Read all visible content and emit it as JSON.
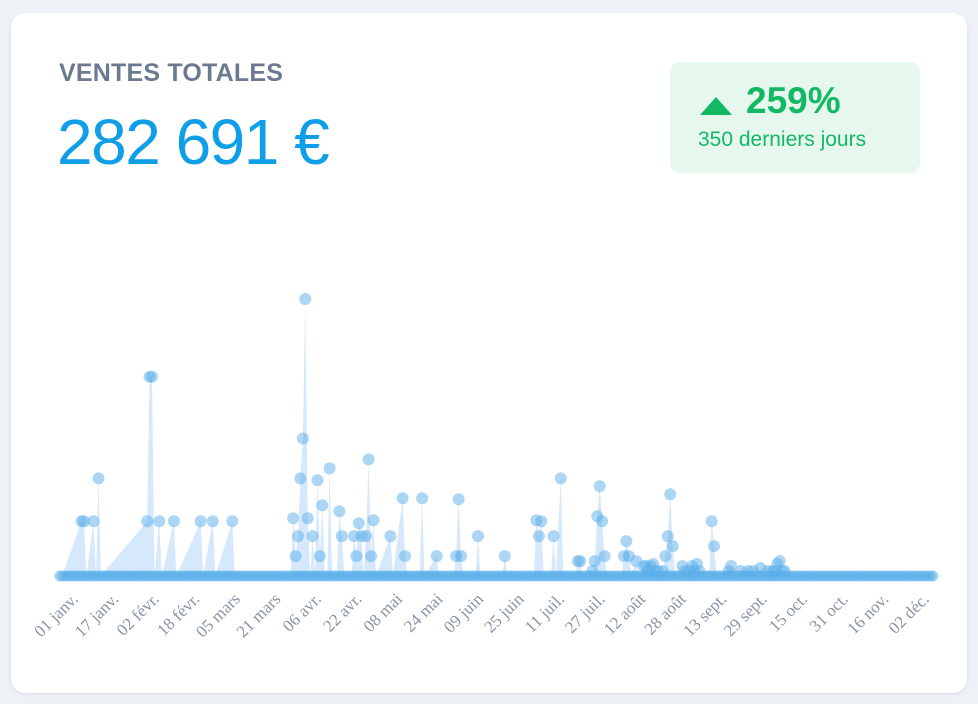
{
  "card": {
    "title": "VENTES TOTALES",
    "total": "282 691 €",
    "change": "259%",
    "period": "350 derniers jours"
  },
  "colors": {
    "title": "#6b7a90",
    "total": "#0f9ee8",
    "up": "#13b864",
    "badge_bg": "#e6f8ee",
    "area": "#cfe4fb",
    "points": "#5aaeea",
    "ticks": "#8a94a6"
  },
  "icons": {
    "trend": "triangle-up-icon"
  },
  "chart_data": {
    "type": "area",
    "title": "",
    "xlabel": "",
    "ylabel": "",
    "grid": false,
    "legend": "none",
    "x_ticks": [
      "01 janv.",
      "17 janv.",
      "02 févr.",
      "18 févr.",
      "05 mars",
      "21 mars",
      "06 avr.",
      "22 avr.",
      "08 mai",
      "24 mai",
      "09 juin",
      "25 juin",
      "11 juil.",
      "27 juil.",
      "12 août",
      "28 août",
      "13 sept.",
      "29 sept.",
      "15 oct.",
      "31 oct.",
      "16 nov.",
      "02 déc."
    ],
    "ylim": [
      0,
      280
    ],
    "series": [
      {
        "points": [
          [
            "01-01",
            0
          ],
          [
            "01-09",
            55
          ],
          [
            "01-10",
            55
          ],
          [
            "01-11",
            0
          ],
          [
            "01-14",
            55
          ],
          [
            "01-15",
            0
          ],
          [
            "01-16",
            98
          ],
          [
            "01-17",
            0
          ],
          [
            "02-05",
            55
          ],
          [
            "02-06",
            200
          ],
          [
            "02-07",
            200
          ],
          [
            "02-08",
            0
          ],
          [
            "02-10",
            55
          ],
          [
            "02-11",
            0
          ],
          [
            "02-16",
            55
          ],
          [
            "02-17",
            0
          ],
          [
            "02-27",
            55
          ],
          [
            "02-28",
            0
          ],
          [
            "03-04",
            55
          ],
          [
            "03-05",
            0
          ],
          [
            "03-12",
            55
          ],
          [
            "03-13",
            0
          ],
          [
            "04-05",
            0
          ],
          [
            "04-06",
            58
          ],
          [
            "04-07",
            20
          ],
          [
            "04-08",
            40
          ],
          [
            "04-09",
            98
          ],
          [
            "04-10",
            138
          ],
          [
            "04-11",
            278
          ],
          [
            "04-12",
            58
          ],
          [
            "04-13",
            0
          ],
          [
            "04-14",
            40
          ],
          [
            "04-15",
            0
          ],
          [
            "04-16",
            96
          ],
          [
            "04-17",
            20
          ],
          [
            "04-18",
            71
          ],
          [
            "04-19",
            0
          ],
          [
            "04-20",
            0
          ],
          [
            "04-21",
            108
          ],
          [
            "04-22",
            0
          ],
          [
            "04-24",
            0
          ],
          [
            "04-25",
            65
          ],
          [
            "04-26",
            40
          ],
          [
            "04-27",
            0
          ],
          [
            "04-30",
            0
          ],
          [
            "05-01",
            40
          ],
          [
            "05-02",
            20
          ],
          [
            "05-03",
            53
          ],
          [
            "05-04",
            40
          ],
          [
            "05-05",
            0
          ],
          [
            "05-06",
            40
          ],
          [
            "05-07",
            117
          ],
          [
            "05-08",
            20
          ],
          [
            "05-09",
            56
          ],
          [
            "05-10",
            0
          ],
          [
            "05-16",
            40
          ],
          [
            "05-17",
            0
          ],
          [
            "05-21",
            78
          ],
          [
            "05-22",
            20
          ],
          [
            "05-23",
            0
          ],
          [
            "05-28",
            0
          ],
          [
            "05-29",
            78
          ],
          [
            "05-30",
            0
          ],
          [
            "06-04",
            20
          ],
          [
            "06-05",
            0
          ],
          [
            "06-11",
            0
          ],
          [
            "06-12",
            20
          ],
          [
            "06-13",
            77
          ],
          [
            "06-14",
            20
          ],
          [
            "06-15",
            0
          ],
          [
            "06-20",
            0
          ],
          [
            "06-21",
            40
          ],
          [
            "06-22",
            0
          ],
          [
            "07-01",
            0
          ],
          [
            "07-02",
            20
          ],
          [
            "07-03",
            0
          ],
          [
            "07-14",
            0
          ],
          [
            "07-15",
            56
          ],
          [
            "07-16",
            40
          ],
          [
            "07-17",
            55
          ],
          [
            "07-18",
            0
          ],
          [
            "07-21",
            0
          ],
          [
            "07-22",
            40
          ],
          [
            "07-23",
            0
          ],
          [
            "07-25",
            98
          ],
          [
            "07-26",
            0
          ],
          [
            "07-31",
            0
          ],
          [
            "08-01",
            15
          ],
          [
            "08-02",
            15
          ],
          [
            "08-03",
            0
          ],
          [
            "08-06",
            0
          ],
          [
            "08-07",
            5
          ],
          [
            "08-08",
            15
          ],
          [
            "08-09",
            60
          ],
          [
            "08-10",
            90
          ],
          [
            "08-11",
            55
          ],
          [
            "08-12",
            20
          ],
          [
            "08-13",
            0
          ],
          [
            "08-19",
            0
          ],
          [
            "08-20",
            20
          ],
          [
            "08-21",
            35
          ],
          [
            "08-22",
            20
          ],
          [
            "08-23",
            0
          ],
          [
            "08-25",
            15
          ],
          [
            "08-26",
            0
          ],
          [
            "08-28",
            10
          ],
          [
            "08-29",
            10
          ],
          [
            "08-30",
            5
          ],
          [
            "08-31",
            10
          ],
          [
            "09-01",
            12
          ],
          [
            "09-02",
            5
          ],
          [
            "09-03",
            5
          ],
          [
            "09-04",
            0
          ],
          [
            "09-05",
            5
          ],
          [
            "09-06",
            20
          ],
          [
            "09-07",
            40
          ],
          [
            "09-08",
            82
          ],
          [
            "09-09",
            30
          ],
          [
            "09-10",
            0
          ],
          [
            "09-12",
            0
          ],
          [
            "09-13",
            10
          ],
          [
            "09-14",
            5
          ],
          [
            "09-15",
            0
          ],
          [
            "09-16",
            5
          ],
          [
            "09-17",
            10
          ],
          [
            "09-18",
            5
          ],
          [
            "09-19",
            12
          ],
          [
            "09-20",
            5
          ],
          [
            "09-21",
            0
          ],
          [
            "09-24",
            0
          ],
          [
            "09-25",
            55
          ],
          [
            "09-26",
            30
          ],
          [
            "09-27",
            0
          ],
          [
            "10-01",
            0
          ],
          [
            "10-02",
            5
          ],
          [
            "10-03",
            10
          ],
          [
            "10-04",
            0
          ],
          [
            "10-06",
            0
          ],
          [
            "10-07",
            5
          ],
          [
            "10-08",
            0
          ],
          [
            "10-09",
            0
          ],
          [
            "10-10",
            5
          ],
          [
            "10-11",
            0
          ],
          [
            "10-12",
            5
          ],
          [
            "10-13",
            0
          ],
          [
            "10-15",
            8
          ],
          [
            "10-16",
            0
          ],
          [
            "10-17",
            0
          ],
          [
            "10-18",
            5
          ],
          [
            "10-19",
            0
          ],
          [
            "10-20",
            5
          ],
          [
            "10-21",
            5
          ],
          [
            "10-22",
            12
          ],
          [
            "10-23",
            15
          ],
          [
            "10-24",
            5
          ],
          [
            "10-25",
            5
          ]
        ]
      }
    ]
  }
}
